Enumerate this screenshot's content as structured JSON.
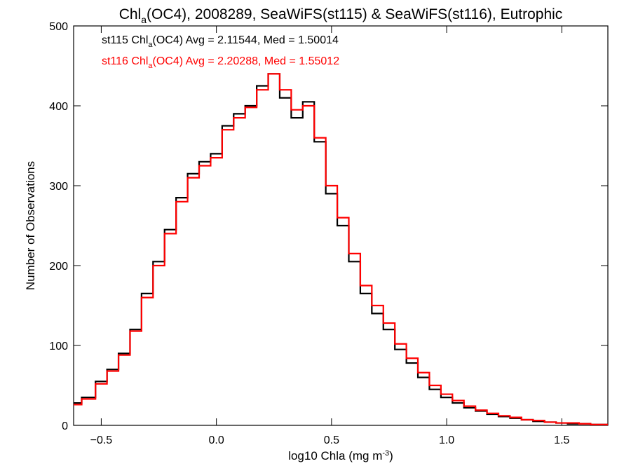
{
  "chart_data": {
    "type": "line",
    "title_main": "Chl",
    "title_sub": "a",
    "title_rest": "(OC4), 2008289, SeaWiFS(st115) & SeaWiFS(st116), Eutrophic",
    "xlabel_main": "log10 Chla (mg m",
    "xlabel_sup": "-3",
    "xlabel_end": ")",
    "ylabel": "Number of Observations",
    "xlim": [
      -0.62,
      1.7
    ],
    "ylim": [
      0,
      500
    ],
    "x_ticks": [
      -0.5,
      0.0,
      0.5,
      1.0,
      1.5
    ],
    "x_tick_labels": [
      "−0.5",
      "0.0",
      "0.5",
      "1.0",
      "1.5"
    ],
    "y_ticks": [
      0,
      100,
      200,
      300,
      400,
      500
    ],
    "y_tick_labels": [
      "0",
      "100",
      "200",
      "300",
      "400",
      "500"
    ],
    "grid": false,
    "legend_position": "top-left",
    "series": [
      {
        "name_prefix": "st115 Chl",
        "name_sub": "a",
        "name_rest": "(OC4) Avg = 2.11544, Med = 1.50014",
        "color": "#000000",
        "x": [
          -0.62,
          -0.55,
          -0.5,
          -0.45,
          -0.4,
          -0.35,
          -0.3,
          -0.25,
          -0.2,
          -0.15,
          -0.1,
          -0.05,
          0.0,
          0.05,
          0.1,
          0.15,
          0.2,
          0.25,
          0.3,
          0.35,
          0.4,
          0.45,
          0.5,
          0.55,
          0.6,
          0.65,
          0.7,
          0.75,
          0.8,
          0.85,
          0.9,
          0.95,
          1.0,
          1.05,
          1.1,
          1.15,
          1.2,
          1.25,
          1.3,
          1.35,
          1.4,
          1.45,
          1.5,
          1.55,
          1.6,
          1.65,
          1.7
        ],
        "y": [
          28,
          35,
          55,
          70,
          90,
          120,
          165,
          205,
          245,
          285,
          315,
          330,
          340,
          375,
          390,
          400,
          425,
          440,
          410,
          385,
          405,
          355,
          290,
          250,
          205,
          165,
          140,
          120,
          95,
          78,
          60,
          45,
          35,
          28,
          22,
          18,
          14,
          11,
          9,
          7,
          5,
          4,
          3,
          2,
          2,
          1,
          1
        ]
      },
      {
        "name_prefix": "st116 Chl",
        "name_sub": "a",
        "name_rest": "(OC4) Avg = 2.20288, Med = 1.55012",
        "color": "#ff0000",
        "x": [
          -0.62,
          -0.55,
          -0.5,
          -0.45,
          -0.4,
          -0.35,
          -0.3,
          -0.25,
          -0.2,
          -0.15,
          -0.1,
          -0.05,
          0.0,
          0.05,
          0.1,
          0.15,
          0.2,
          0.25,
          0.3,
          0.35,
          0.4,
          0.45,
          0.5,
          0.55,
          0.6,
          0.65,
          0.7,
          0.75,
          0.8,
          0.85,
          0.9,
          0.95,
          1.0,
          1.05,
          1.1,
          1.15,
          1.2,
          1.25,
          1.3,
          1.35,
          1.4,
          1.45,
          1.5,
          1.55,
          1.6,
          1.65,
          1.7
        ],
        "y": [
          26,
          33,
          52,
          68,
          88,
          118,
          160,
          200,
          240,
          280,
          310,
          325,
          335,
          370,
          385,
          398,
          420,
          440,
          420,
          395,
          400,
          360,
          300,
          260,
          215,
          175,
          150,
          128,
          102,
          84,
          66,
          50,
          39,
          31,
          24,
          19,
          15,
          12,
          10,
          7,
          6,
          4,
          3,
          3,
          2,
          1,
          1
        ]
      }
    ]
  }
}
